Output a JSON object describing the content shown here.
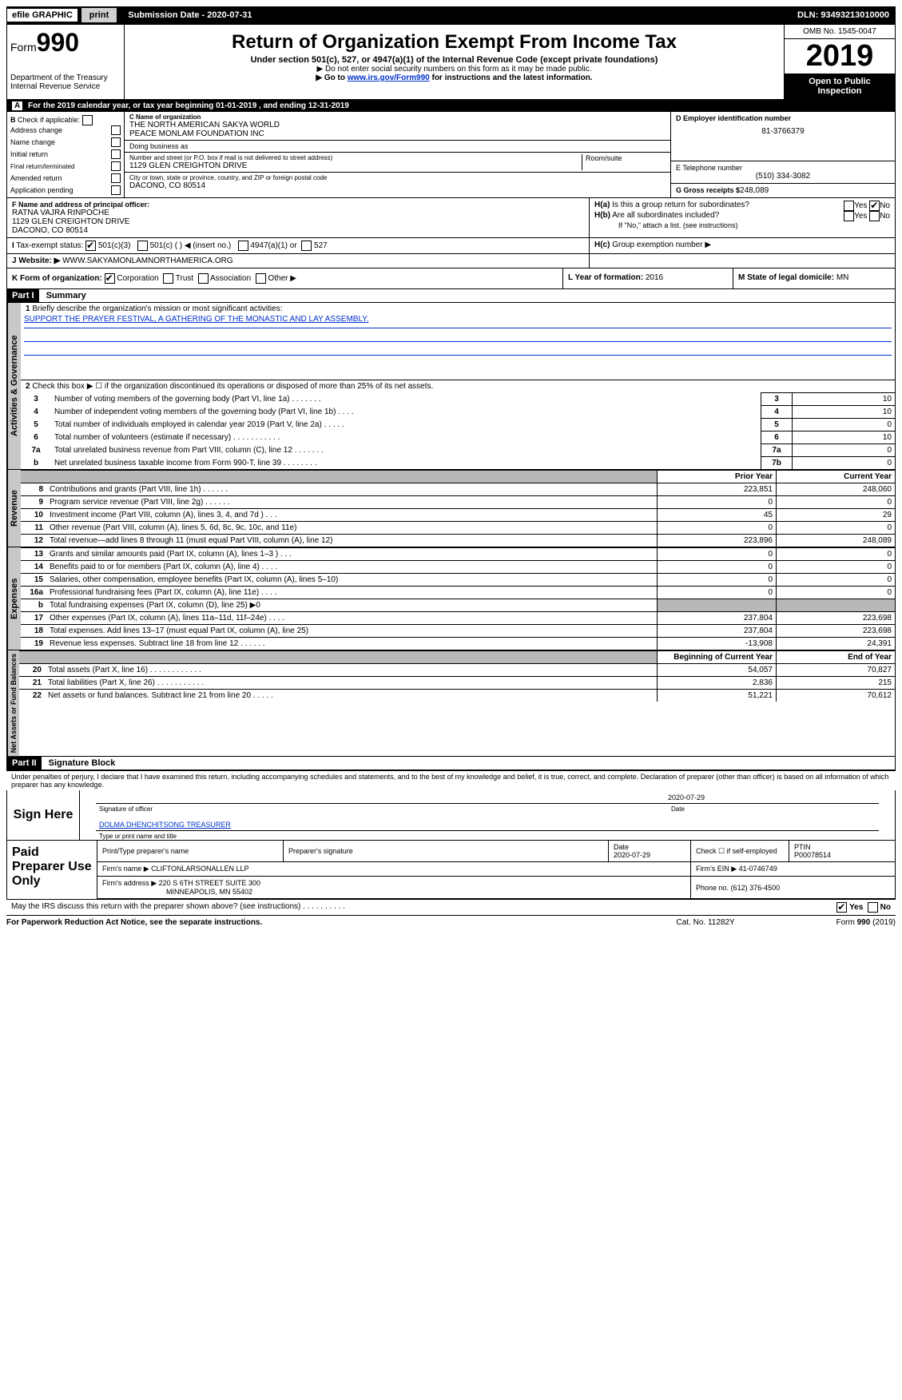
{
  "topbar": {
    "efile": "efile GRAPHIC",
    "print": "print",
    "submission": "Submission Date - 2020-07-31",
    "dln": "DLN: 93493213010000"
  },
  "header": {
    "form_prefix": "Form",
    "form_number": "990",
    "dept": "Department of the Treasury",
    "irs": "Internal Revenue Service",
    "title": "Return of Organization Exempt From Income Tax",
    "sub1": "Under section 501(c), 527, or 4947(a)(1) of the Internal Revenue Code (except private foundations)",
    "sub2": "▶ Do not enter social security numbers on this form as it may be made public.",
    "sub3_pre": "▶ Go to ",
    "sub3_link": "www.irs.gov/Form990",
    "sub3_post": " for instructions and the latest information.",
    "omb": "OMB No. 1545-0047",
    "year": "2019",
    "open": "Open to Public Inspection"
  },
  "taxyear": {
    "label_a": "A",
    "text": "For the 2019 calendar year, or tax year beginning 01-01-2019",
    "ending": ", and ending 12-31-2019"
  },
  "sectionB": {
    "label": "B",
    "check_label": "Check if applicable:",
    "items": [
      "Address change",
      "Name change",
      "Initial return",
      "Final return/terminated",
      "Amended return",
      "Application pending"
    ]
  },
  "sectionC": {
    "name_lbl": "C Name of organization",
    "name1": "THE NORTH AMERICAN SAKYA WORLD",
    "name2": "PEACE MONLAM FOUNDATION INC",
    "dba_lbl": "Doing business as",
    "addr_lbl": "Number and street (or P.O. box if mail is not delivered to street address)",
    "room_lbl": "Room/suite",
    "addr": "1129 GLEN CREIGHTON DRIVE",
    "city_lbl": "City or town, state or province, country, and ZIP or foreign postal code",
    "city": "DACONO, CO  80514"
  },
  "sectionD": {
    "ein_lbl": "D Employer identification number",
    "ein": "81-3766379",
    "phone_lbl": "E Telephone number",
    "phone": "(510) 334-3082",
    "gross_lbl": "G Gross receipts $",
    "gross": "248,089"
  },
  "sectionF": {
    "lbl": "F Name and address of principal officer:",
    "name": "RATNA VAJRA RINPOCHE",
    "addr": "1129 GLEN CREIGHTON DRIVE",
    "city": "DACONO, CO  80514"
  },
  "sectionH": {
    "ha_lbl": "H(a)",
    "ha_q": "Is this a group return for subordinates?",
    "hb_lbl": "H(b)",
    "hb_q": "Are all subordinates included?",
    "hb_note": "If \"No,\" attach a list. (see instructions)",
    "hc_lbl": "H(c)",
    "hc_q": "Group exemption number ▶",
    "yes": "Yes",
    "no": "No"
  },
  "sectionI": {
    "lbl": "I",
    "tax_status": "Tax-exempt status:",
    "opts": [
      "501(c)(3)",
      "501(c) (  ) ◀ (insert no.)",
      "4947(a)(1) or",
      "527"
    ]
  },
  "sectionJ": {
    "lbl": "J",
    "website_lbl": "Website: ▶",
    "website": "WWW.SAKYAMONLAMNORTHAMERICA.ORG"
  },
  "sectionK": {
    "lbl": "K Form of organization:",
    "opts": [
      "Corporation",
      "Trust",
      "Association",
      "Other ▶"
    ],
    "L_lbl": "L Year of formation:",
    "L_val": "2016",
    "M_lbl": "M State of legal domicile:",
    "M_val": "MN"
  },
  "part1": {
    "part_lbl": "Part I",
    "title": "Summary",
    "line1_lbl": "1",
    "line1": "Briefly describe the organization's mission or most significant activities:",
    "mission": "SUPPORT THE PRAYER FESTIVAL, A GATHERING OF THE MONASTIC AND LAY ASSEMBLY.",
    "line2_lbl": "2",
    "line2": "Check this box ▶ ☐ if the organization discontinued its operations or disposed of more than 25% of its net assets.",
    "governance_label": "Activities & Governance",
    "rows": [
      {
        "n": "3",
        "d": "Number of voting members of the governing body (Part VI, line 1a)  .   .   .   .   .   .   .",
        "r": "3",
        "v": "10"
      },
      {
        "n": "4",
        "d": "Number of independent voting members of the governing body (Part VI, line 1b)  .   .   .   .",
        "r": "4",
        "v": "10"
      },
      {
        "n": "5",
        "d": "Total number of individuals employed in calendar year 2019 (Part V, line 2a)  .   .   .   .   .",
        "r": "5",
        "v": "0"
      },
      {
        "n": "6",
        "d": "Total number of volunteers (estimate if necessary)  .   .   .   .   .   .   .   .   .   .   .",
        "r": "6",
        "v": "10"
      },
      {
        "n": "7a",
        "d": "Total unrelated business revenue from Part VIII, column (C), line 12  .   .   .   .   .   .   .",
        "r": "7a",
        "v": "0"
      },
      {
        "n": "b",
        "d": "Net unrelated business taxable income from Form 990-T, line 39  .   .   .   .   .   .   .   .",
        "r": "7b",
        "v": "0"
      }
    ]
  },
  "revenue": {
    "label": "Revenue",
    "prior_hdr": "Prior Year",
    "current_hdr": "Current Year",
    "rows": [
      {
        "n": "8",
        "d": "Contributions and grants (Part VIII, line 1h)  .   .   .   .   .   .",
        "p": "223,851",
        "c": "248,060"
      },
      {
        "n": "9",
        "d": "Program service revenue (Part VIII, line 2g)  .   .   .   .   .   .",
        "p": "0",
        "c": "0"
      },
      {
        "n": "10",
        "d": "Investment income (Part VIII, column (A), lines 3, 4, and 7d )  .   .   .",
        "p": "45",
        "c": "29"
      },
      {
        "n": "11",
        "d": "Other revenue (Part VIII, column (A), lines 5, 6d, 8c, 9c, 10c, and 11e)",
        "p": "0",
        "c": "0"
      },
      {
        "n": "12",
        "d": "Total revenue—add lines 8 through 11 (must equal Part VIII, column (A), line 12)",
        "p": "223,896",
        "c": "248,089"
      }
    ]
  },
  "expenses": {
    "label": "Expenses",
    "rows": [
      {
        "n": "13",
        "d": "Grants and similar amounts paid (Part IX, column (A), lines 1–3 )  .   .   .",
        "p": "0",
        "c": "0"
      },
      {
        "n": "14",
        "d": "Benefits paid to or for members (Part IX, column (A), line 4)  .   .   .   .",
        "p": "0",
        "c": "0"
      },
      {
        "n": "15",
        "d": "Salaries, other compensation, employee benefits (Part IX, column (A), lines 5–10)",
        "p": "0",
        "c": "0"
      },
      {
        "n": "16a",
        "d": "Professional fundraising fees (Part IX, column (A), line 11e)  .   .   .   .",
        "p": "0",
        "c": "0"
      },
      {
        "n": "b",
        "d": "Total fundraising expenses (Part IX, column (D), line 25) ▶0",
        "p": "",
        "c": "",
        "shaded": true
      },
      {
        "n": "17",
        "d": "Other expenses (Part IX, column (A), lines 11a–11d, 11f–24e)  .   .   .   .",
        "p": "237,804",
        "c": "223,698"
      },
      {
        "n": "18",
        "d": "Total expenses. Add lines 13–17 (must equal Part IX, column (A), line 25)",
        "p": "237,804",
        "c": "223,698"
      },
      {
        "n": "19",
        "d": "Revenue less expenses. Subtract line 18 from line 12  .   .   .   .   .   .",
        "p": "-13,908",
        "c": "24,391"
      }
    ]
  },
  "netassets": {
    "label": "Net Assets or Fund Balances",
    "begin_hdr": "Beginning of Current Year",
    "end_hdr": "End of Year",
    "rows": [
      {
        "n": "20",
        "d": "Total assets (Part X, line 16)  .   .   .   .   .   .   .   .   .   .   .   .",
        "p": "54,057",
        "c": "70,827"
      },
      {
        "n": "21",
        "d": "Total liabilities (Part X, line 26)  .   .   .   .   .   .   .   .   .   .   .",
        "p": "2,836",
        "c": "215"
      },
      {
        "n": "22",
        "d": "Net assets or fund balances. Subtract line 21 from line 20  .   .   .   .   .",
        "p": "51,221",
        "c": "70,612"
      }
    ]
  },
  "part2": {
    "part_lbl": "Part II",
    "title": "Signature Block",
    "perjury": "Under penalties of perjury, I declare that I have examined this return, including accompanying schedules and statements, and to the best of my knowledge and belief, it is true, correct, and complete. Declaration of preparer (other than officer) is based on all information of which preparer has any knowledge.",
    "sign_here": "Sign Here",
    "sig_officer_lbl": "Signature of officer",
    "date": "2020-07-29",
    "date_lbl": "Date",
    "officer_name": "DOLMA DHENCHITSONG TREASURER",
    "officer_name_lbl": "Type or print name and title"
  },
  "paid": {
    "label": "Paid Preparer Use Only",
    "prep_name_lbl": "Print/Type preparer's name",
    "prep_sig_lbl": "Preparer's signature",
    "date_lbl": "Date",
    "date": "2020-07-29",
    "check_lbl": "Check ☐ if self-employed",
    "ptin_lbl": "PTIN",
    "ptin": "P00078514",
    "firm_name_lbl": "Firm's name    ▶",
    "firm_name": "CLIFTONLARSONALLEN LLP",
    "firm_ein_lbl": "Firm's EIN ▶",
    "firm_ein": "41-0746749",
    "firm_addr_lbl": "Firm's address ▶",
    "firm_addr1": "220 S 6TH STREET SUITE 300",
    "firm_addr2": "MINNEAPOLIS, MN  55402",
    "phone_lbl": "Phone no.",
    "phone": "(612) 376-4500"
  },
  "discuss": {
    "q": "May the IRS discuss this return with the preparer shown above? (see instructions)  .   .   .   .   .   .   .   .   .   .",
    "yes": "Yes",
    "no": "No"
  },
  "footer": {
    "fpa": "For Paperwork Reduction Act Notice, see the separate instructions.",
    "cat": "Cat. No. 11282Y",
    "form": "Form 990 (2019)"
  }
}
